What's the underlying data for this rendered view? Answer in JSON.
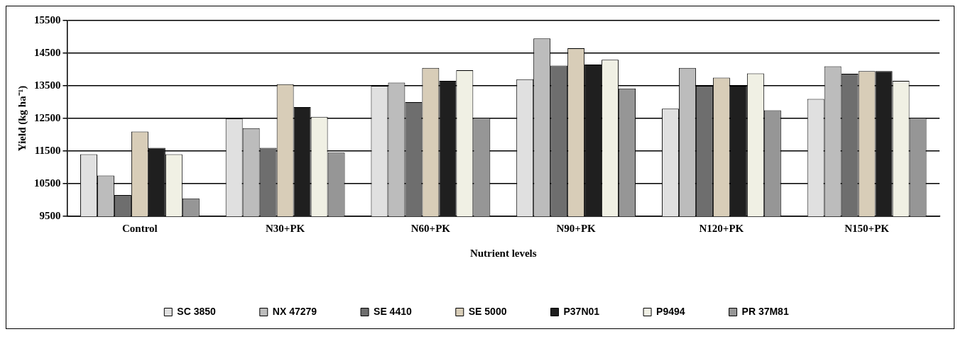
{
  "chart_data": {
    "type": "bar",
    "xlabel": "Nutrient levels",
    "ylabel": "Yield (kg ha⁻¹)",
    "categories": [
      "Control",
      "N30+PK",
      "N60+PK",
      "N90+PK",
      "N120+PK",
      "N150+PK"
    ],
    "series": [
      {
        "name": "SC 3850",
        "color": "#e0e0e0",
        "values": [
          11400,
          12500,
          13500,
          13700,
          12800,
          13100
        ]
      },
      {
        "name": "NX 47279",
        "color": "#bcbcbc",
        "values": [
          10750,
          12200,
          13600,
          14950,
          14050,
          14100
        ]
      },
      {
        "name": "SE 4410",
        "color": "#6e6e6e",
        "values": [
          10150,
          11600,
          13000,
          14120,
          13500,
          13870
        ]
      },
      {
        "name": "SE 5000",
        "color": "#d8cdb8",
        "values": [
          12100,
          13550,
          14050,
          14650,
          13750,
          13950
        ]
      },
      {
        "name": "P37N01",
        "color": "#1f1f1f",
        "values": [
          11600,
          12850,
          13650,
          14150,
          13500,
          13950
        ]
      },
      {
        "name": "P9494",
        "color": "#f0f0e4",
        "values": [
          11400,
          12550,
          13980,
          14300,
          13880,
          13650
        ]
      },
      {
        "name": "PR 37M81",
        "color": "#969696",
        "values": [
          10050,
          11450,
          12520,
          13420,
          12750,
          12520
        ]
      }
    ],
    "ylim": [
      9500,
      15500
    ],
    "yticks": [
      9500,
      10500,
      11500,
      12500,
      13500,
      14500,
      15500
    ],
    "grid": "y",
    "legend": "bottom"
  }
}
